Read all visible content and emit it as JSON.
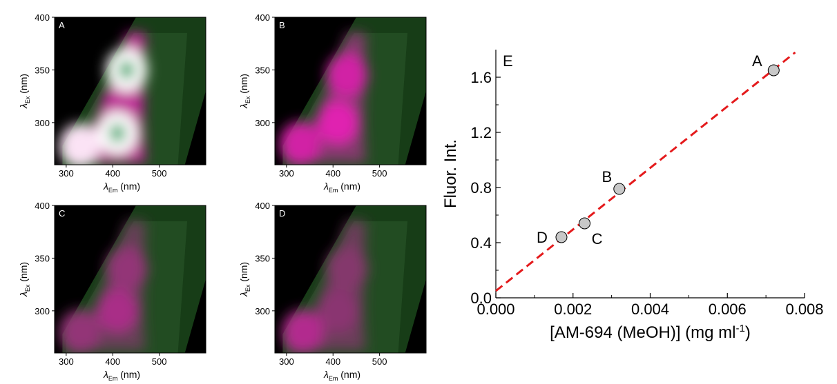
{
  "chart_data": [
    {
      "type": "heatmap",
      "panel": "A",
      "xlabel": "λEm (nm)",
      "ylabel": "λEx (nm)",
      "xticks": [
        300,
        400,
        500
      ],
      "yticks": [
        300,
        350,
        400
      ],
      "xlim": [
        275,
        600
      ],
      "ylim": [
        260,
        400
      ],
      "colors": {
        "background": "#000000",
        "low": "#1a3a1a",
        "mid": "#e020b0",
        "high": "#ffffff",
        "peak": "#2fa86a"
      },
      "peaks": [
        {
          "em": 430,
          "ex": 350,
          "intensity": 1.0
        },
        {
          "em": 410,
          "ex": 290,
          "intensity": 1.0
        },
        {
          "em": 330,
          "ex": 278,
          "intensity": 0.95
        }
      ]
    },
    {
      "type": "heatmap",
      "panel": "B",
      "xlabel": "λEm (nm)",
      "ylabel": "λEx (nm)",
      "xticks": [
        300,
        400,
        500
      ],
      "yticks": [
        300,
        350,
        400
      ],
      "xlim": [
        275,
        600
      ],
      "ylim": [
        260,
        400
      ],
      "peaks": [
        {
          "em": 430,
          "ex": 345,
          "intensity": 0.55
        },
        {
          "em": 410,
          "ex": 300,
          "intensity": 0.6
        },
        {
          "em": 330,
          "ex": 280,
          "intensity": 0.55
        }
      ]
    },
    {
      "type": "heatmap",
      "panel": "C",
      "xlabel": "λEm (nm)",
      "ylabel": "λEx (nm)",
      "xticks": [
        300,
        400,
        500
      ],
      "yticks": [
        300,
        350,
        400
      ],
      "xlim": [
        275,
        600
      ],
      "ylim": [
        260,
        400
      ],
      "peaks": [
        {
          "em": 430,
          "ex": 340,
          "intensity": 0.35
        },
        {
          "em": 410,
          "ex": 300,
          "intensity": 0.42
        },
        {
          "em": 330,
          "ex": 280,
          "intensity": 0.35
        }
      ]
    },
    {
      "type": "heatmap",
      "panel": "D",
      "xlabel": "λEm (nm)",
      "ylabel": "λEx (nm)",
      "xticks": [
        300,
        400,
        500
      ],
      "yticks": [
        300,
        350,
        400
      ],
      "xlim": [
        275,
        600
      ],
      "ylim": [
        260,
        400
      ],
      "peaks": [
        {
          "em": 430,
          "ex": 340,
          "intensity": 0.3
        },
        {
          "em": 410,
          "ex": 300,
          "intensity": 0.32
        },
        {
          "em": 335,
          "ex": 280,
          "intensity": 0.45
        }
      ]
    },
    {
      "type": "scatter",
      "panel": "E",
      "xlabel": "[AM-694 (MeOH)] (mg ml-1)",
      "ylabel": "Fluor. Int.",
      "xlim": [
        0.0,
        0.008
      ],
      "ylim": [
        0.0,
        1.8
      ],
      "xticks": [
        "0.000",
        "0.002",
        "0.004",
        "0.006",
        "0.008"
      ],
      "yticks": [
        "0.0",
        "0.4",
        "0.8",
        "1.2",
        "1.6"
      ],
      "points": [
        {
          "label": "D",
          "x": 0.0017,
          "y": 0.44
        },
        {
          "label": "C",
          "x": 0.0023,
          "y": 0.54
        },
        {
          "label": "B",
          "x": 0.0032,
          "y": 0.79
        },
        {
          "label": "A",
          "x": 0.0072,
          "y": 1.65
        }
      ],
      "fit_line": {
        "slope": 223,
        "intercept": 0.05,
        "style": "dashed",
        "color": "#e41a1c"
      },
      "marker_color": "#c8c8c8"
    }
  ]
}
